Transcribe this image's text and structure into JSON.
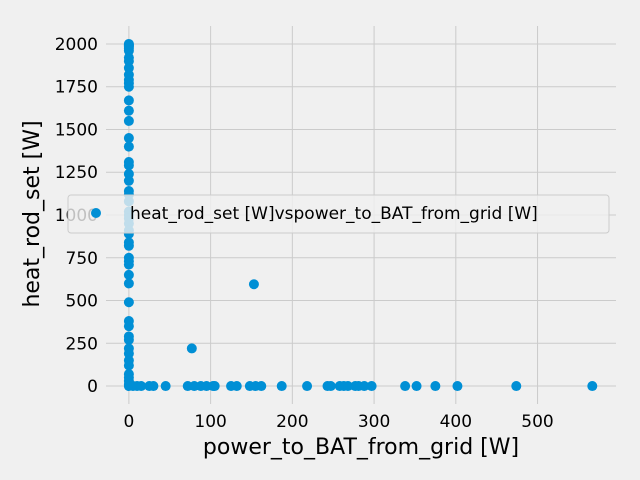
{
  "chart_data": {
    "type": "scatter",
    "title": "",
    "xlabel": "power_to_BAT_from_grid [W]",
    "ylabel": "heat_rod_set [W]",
    "xlim": [
      -28,
      596
    ],
    "ylim": [
      -105,
      2105
    ],
    "xticks": [
      0,
      100,
      200,
      300,
      400,
      500
    ],
    "yticks": [
      0,
      250,
      500,
      750,
      1000,
      1250,
      1500,
      1750,
      2000
    ],
    "grid": true,
    "legend_position": "center-right",
    "marker_color": "#008fd5",
    "series": [
      {
        "name": "heat_rod_set [W]vspower_to_BAT_from_grid [W]",
        "points": [
          [
            0,
            2000
          ],
          [
            0,
            1995
          ],
          [
            0,
            1990
          ],
          [
            0,
            1985
          ],
          [
            0,
            1975
          ],
          [
            0,
            1960
          ],
          [
            0,
            1920
          ],
          [
            0,
            1900
          ],
          [
            0,
            1860
          ],
          [
            0,
            1820
          ],
          [
            0,
            1790
          ],
          [
            0,
            1770
          ],
          [
            0,
            1750
          ],
          [
            0,
            1670
          ],
          [
            0,
            1610
          ],
          [
            0,
            1550
          ],
          [
            0,
            1450
          ],
          [
            0,
            1400
          ],
          [
            0,
            1310
          ],
          [
            0,
            1290
          ],
          [
            0,
            1240
          ],
          [
            0,
            1200
          ],
          [
            0,
            1140
          ],
          [
            0,
            1120
          ],
          [
            0,
            1080
          ],
          [
            0,
            1020
          ],
          [
            0,
            1000
          ],
          [
            0,
            980
          ],
          [
            0,
            950
          ],
          [
            0,
            910
          ],
          [
            0,
            890
          ],
          [
            0,
            840
          ],
          [
            0,
            820
          ],
          [
            0,
            750
          ],
          [
            0,
            730
          ],
          [
            0,
            710
          ],
          [
            0,
            650
          ],
          [
            0,
            600
          ],
          [
            0,
            490
          ],
          [
            0,
            380
          ],
          [
            0,
            350
          ],
          [
            0,
            290
          ],
          [
            0,
            270
          ],
          [
            0,
            220
          ],
          [
            0,
            190
          ],
          [
            0,
            150
          ],
          [
            0,
            120
          ],
          [
            0,
            70
          ],
          [
            0,
            50
          ],
          [
            0,
            30
          ],
          [
            0,
            10
          ],
          [
            0,
            0
          ],
          [
            5,
            0
          ],
          [
            10,
            0
          ],
          [
            15,
            0
          ],
          [
            25,
            0
          ],
          [
            30,
            0
          ],
          [
            45,
            0
          ],
          [
            72,
            0
          ],
          [
            80,
            0
          ],
          [
            88,
            0
          ],
          [
            95,
            0
          ],
          [
            103,
            0
          ],
          [
            105,
            0
          ],
          [
            125,
            0
          ],
          [
            132,
            0
          ],
          [
            148,
            0
          ],
          [
            155,
            0
          ],
          [
            162,
            0
          ],
          [
            187,
            0
          ],
          [
            218,
            0
          ],
          [
            243,
            0
          ],
          [
            247,
            0
          ],
          [
            258,
            0
          ],
          [
            263,
            0
          ],
          [
            268,
            0
          ],
          [
            277,
            0
          ],
          [
            281,
            0
          ],
          [
            288,
            0
          ],
          [
            297,
            0
          ],
          [
            338,
            0
          ],
          [
            352,
            0
          ],
          [
            375,
            0
          ],
          [
            402,
            0
          ],
          [
            474,
            0
          ],
          [
            567,
            0
          ],
          [
            77,
            220
          ],
          [
            153,
            595
          ]
        ]
      }
    ]
  }
}
